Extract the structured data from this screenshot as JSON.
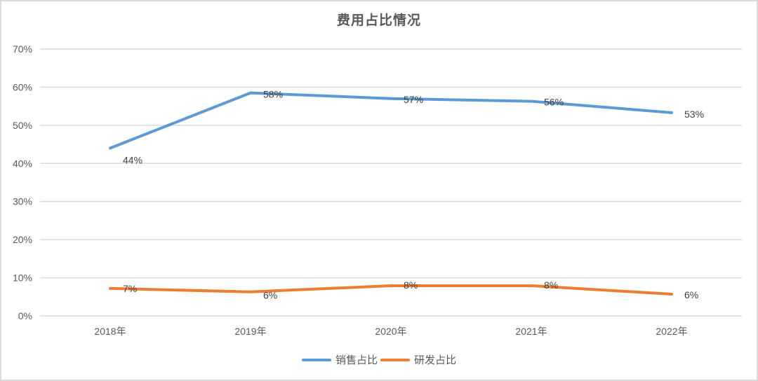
{
  "chart_data": {
    "type": "line",
    "title": "费用占比情况",
    "xlabel": "",
    "ylabel": "",
    "categories": [
      "2018年",
      "2019年",
      "2020年",
      "2021年",
      "2022年"
    ],
    "series": [
      {
        "name": "销售占比",
        "color": "#5b9bd5",
        "values": [
          0.44,
          0.585,
          0.57,
          0.563,
          0.533
        ],
        "labels": [
          "44%",
          "58%",
          "57%",
          "56%",
          "53%"
        ]
      },
      {
        "name": "研发占比",
        "color": "#ed7d31",
        "values": [
          0.072,
          0.063,
          0.079,
          0.079,
          0.057
        ],
        "labels": [
          "7%",
          "6%",
          "8%",
          "8%",
          "6%"
        ]
      }
    ],
    "ylim": [
      0,
      0.7
    ],
    "yticks": [
      "0%",
      "10%",
      "20%",
      "30%",
      "40%",
      "50%",
      "60%",
      "70%"
    ],
    "grid": true,
    "legend_position": "bottom"
  },
  "legend": {
    "items": [
      {
        "label": "销售占比",
        "color": "#5b9bd5"
      },
      {
        "label": "研发占比",
        "color": "#ed7d31"
      }
    ]
  }
}
